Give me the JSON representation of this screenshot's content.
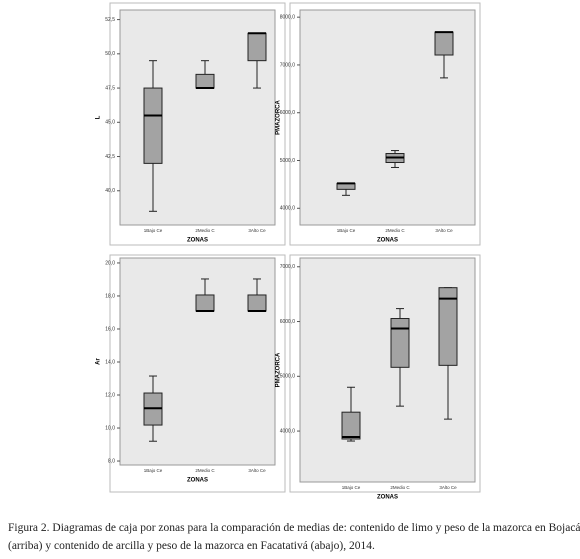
{
  "chart_data": [
    {
      "type": "box",
      "y_label": "L",
      "x_label": "ZONAS",
      "categories": [
        "1Bajo Ce",
        "2Medio C",
        "3Alto Ce"
      ],
      "color": "#a3a3a3",
      "ylim": [
        37.5,
        53.2
      ],
      "yticks": [
        {
          "value": 40,
          "label": "40,0"
        },
        {
          "value": 42.5,
          "label": "42,5"
        },
        {
          "value": 45,
          "label": "45,0"
        },
        {
          "value": 47.5,
          "label": "47,5"
        },
        {
          "value": 50,
          "label": "50,0"
        },
        {
          "value": 52.5,
          "label": "52,5"
        }
      ],
      "boxes": [
        {
          "min": 38.5,
          "q1": 42,
          "median": 45.5,
          "q3": 47.5,
          "max": 49.5
        },
        {
          "min": 47.5,
          "q1": 47.5,
          "median": 47.5,
          "q3": 48.5,
          "max": 49.5
        },
        {
          "min": 47.5,
          "q1": 49.5,
          "median": 51.5,
          "q3": 51.5,
          "max": 51.5
        }
      ]
    },
    {
      "type": "box",
      "y_label": "PMAZORCA",
      "x_label": "ZONAS",
      "categories": [
        "1Bajo Ce",
        "2Medio C",
        "3Alto Ce"
      ],
      "color": "#a3a3a3",
      "ylim": [
        3650,
        8150
      ],
      "yticks": [
        {
          "value": 4000,
          "label": "4000,0"
        },
        {
          "value": 5000,
          "label": "5000,0"
        },
        {
          "value": 6000,
          "label": "6000,0"
        },
        {
          "value": 7000,
          "label": "7000,0"
        },
        {
          "value": 8000,
          "label": "8000,0"
        }
      ],
      "boxes": [
        {
          "min": 4271,
          "q1": 4396,
          "median": 4521,
          "q3": 4521,
          "max": 4521
        },
        {
          "min": 4854,
          "q1": 4958,
          "median": 5063,
          "q3": 5146,
          "max": 5208
        },
        {
          "min": 6729,
          "q1": 7208,
          "median": 7688,
          "q3": 7688,
          "max": 7688
        }
      ]
    },
    {
      "type": "box",
      "y_label": "Ar",
      "x_label": "ZONAS",
      "categories": [
        "1Bajo Ce",
        "2Medio C",
        "3Alto Ce"
      ],
      "color": "#a3a3a3",
      "ylim": [
        7.76,
        20.3
      ],
      "yticks": [
        {
          "value": 8,
          "label": "8,0"
        },
        {
          "value": 10,
          "label": "10,0"
        },
        {
          "value": 12,
          "label": "12,0"
        },
        {
          "value": 14,
          "label": "14,0"
        },
        {
          "value": 16,
          "label": "16,0"
        },
        {
          "value": 18,
          "label": "18,0"
        },
        {
          "value": 20,
          "label": "20,0"
        }
      ],
      "boxes": [
        {
          "min": 9.2,
          "q1": 10.18,
          "median": 11.2,
          "q3": 12.12,
          "max": 13.15
        },
        {
          "min": 17.09,
          "q1": 17.09,
          "median": 17.09,
          "q3": 18.06,
          "max": 19.03
        },
        {
          "min": 17.09,
          "q1": 17.09,
          "median": 17.09,
          "q3": 18.06,
          "max": 19.03
        }
      ]
    },
    {
      "type": "box",
      "y_label": "PMAZORCA",
      "x_label": "ZONAS",
      "categories": [
        "1Bajo Ce",
        "2Medio C",
        "3Alto Ce"
      ],
      "color": "#a3a3a3",
      "ylim": [
        3070,
        7160
      ],
      "yticks": [
        {
          "value": 4000,
          "label": "4000,0"
        },
        {
          "value": 5000,
          "label": "5000,0"
        },
        {
          "value": 6000,
          "label": "6000,0"
        },
        {
          "value": 7000,
          "label": "7000,0"
        }
      ],
      "boxes": [
        {
          "min": 3818,
          "q1": 3855,
          "median": 3891,
          "q3": 4345,
          "max": 4800
        },
        {
          "min": 4455,
          "q1": 5164,
          "median": 5873,
          "q3": 6055,
          "max": 6236
        },
        {
          "min": 4218,
          "q1": 5200,
          "median": 6418,
          "q3": 6618,
          "max": 6618
        }
      ]
    }
  ],
  "caption": [
    "Figura 2. Diagramas de caja por zonas para la comparación de medias de: contenido de limo y peso de la mazorca en Bojacá",
    "(arriba) y contenido de arcilla y peso de la mazorca en Facatativá (abajo), 2014."
  ]
}
